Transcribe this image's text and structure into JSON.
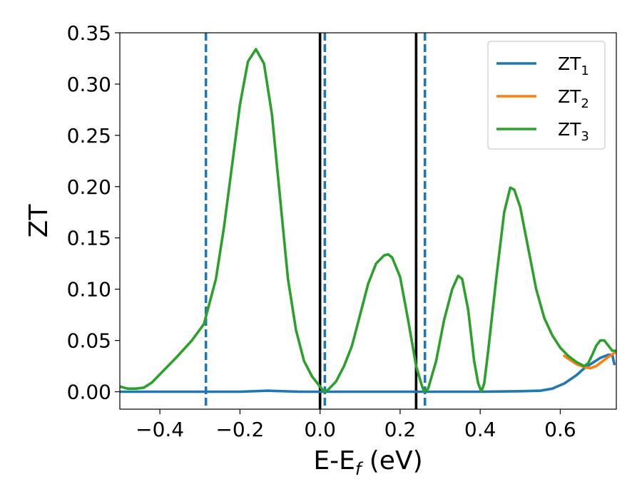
{
  "chart_data": {
    "type": "line",
    "xlabel": {
      "main": "E-E",
      "sub": "f",
      "suffix": " (eV)"
    },
    "ylabel": "ZT",
    "xlim": [
      -0.5,
      0.74
    ],
    "ylim": [
      -0.017,
      0.35
    ],
    "xticks": [
      {
        "value": -0.4,
        "label": "−0.4"
      },
      {
        "value": -0.2,
        "label": "−0.2"
      },
      {
        "value": 0.0,
        "label": "0.0"
      },
      {
        "value": 0.2,
        "label": "0.2"
      },
      {
        "value": 0.4,
        "label": "0.4"
      },
      {
        "value": 0.6,
        "label": "0.6"
      }
    ],
    "yticks": [
      {
        "value": 0.0,
        "label": "0.00"
      },
      {
        "value": 0.05,
        "label": "0.05"
      },
      {
        "value": 0.1,
        "label": "0.10"
      },
      {
        "value": 0.15,
        "label": "0.15"
      },
      {
        "value": 0.2,
        "label": "0.20"
      },
      {
        "value": 0.25,
        "label": "0.25"
      },
      {
        "value": 0.3,
        "label": "0.30"
      },
      {
        "value": 0.35,
        "label": "0.35"
      }
    ],
    "grid": false,
    "legend_position": "top-right",
    "series": [
      {
        "name": "ZT",
        "sub": "1",
        "color": "#1f77b4",
        "points": [
          [
            -0.5,
            0.0
          ],
          [
            -0.4,
            0.0
          ],
          [
            -0.3,
            0.0
          ],
          [
            -0.2,
            0.0
          ],
          [
            -0.13,
            0.001
          ],
          [
            -0.05,
            0.0
          ],
          [
            0.0,
            0.0
          ],
          [
            0.1,
            0.0
          ],
          [
            0.2,
            0.0
          ],
          [
            0.3,
            0.0
          ],
          [
            0.4,
            0.0
          ],
          [
            0.5,
            0.0005
          ],
          [
            0.55,
            0.001
          ],
          [
            0.58,
            0.003
          ],
          [
            0.61,
            0.008
          ],
          [
            0.64,
            0.016
          ],
          [
            0.66,
            0.023
          ],
          [
            0.68,
            0.028
          ],
          [
            0.7,
            0.033
          ],
          [
            0.72,
            0.036
          ],
          [
            0.73,
            0.036
          ],
          [
            0.735,
            0.027
          ]
        ]
      },
      {
        "name": "ZT",
        "sub": "2",
        "color": "#ff7f0e",
        "points": [
          [
            0.61,
            0.035
          ],
          [
            0.64,
            0.027
          ],
          [
            0.66,
            0.024
          ],
          [
            0.675,
            0.023
          ],
          [
            0.69,
            0.025
          ],
          [
            0.7,
            0.028
          ],
          [
            0.72,
            0.034
          ],
          [
            0.74,
            0.039
          ]
        ]
      },
      {
        "name": "ZT",
        "sub": "3",
        "color": "#2ca02c",
        "points": [
          [
            -0.5,
            0.005
          ],
          [
            -0.48,
            0.003
          ],
          [
            -0.46,
            0.003
          ],
          [
            -0.44,
            0.004
          ],
          [
            -0.42,
            0.009
          ],
          [
            -0.4,
            0.017
          ],
          [
            -0.36,
            0.033
          ],
          [
            -0.32,
            0.05
          ],
          [
            -0.29,
            0.066
          ],
          [
            -0.26,
            0.11
          ],
          [
            -0.24,
            0.16
          ],
          [
            -0.22,
            0.22
          ],
          [
            -0.2,
            0.28
          ],
          [
            -0.18,
            0.322
          ],
          [
            -0.16,
            0.334
          ],
          [
            -0.14,
            0.32
          ],
          [
            -0.12,
            0.27
          ],
          [
            -0.1,
            0.19
          ],
          [
            -0.08,
            0.11
          ],
          [
            -0.06,
            0.06
          ],
          [
            -0.04,
            0.03
          ],
          [
            -0.02,
            0.015
          ],
          [
            0.0,
            0.005
          ],
          [
            0.01,
            0.0
          ],
          [
            0.02,
            0.002
          ],
          [
            0.04,
            0.01
          ],
          [
            0.06,
            0.025
          ],
          [
            0.08,
            0.045
          ],
          [
            0.1,
            0.075
          ],
          [
            0.12,
            0.105
          ],
          [
            0.14,
            0.125
          ],
          [
            0.16,
            0.133
          ],
          [
            0.17,
            0.134
          ],
          [
            0.18,
            0.131
          ],
          [
            0.2,
            0.112
          ],
          [
            0.22,
            0.07
          ],
          [
            0.24,
            0.025
          ],
          [
            0.255,
            0.005
          ],
          [
            0.26,
            0.0
          ],
          [
            0.27,
            0.003
          ],
          [
            0.29,
            0.03
          ],
          [
            0.31,
            0.07
          ],
          [
            0.33,
            0.1
          ],
          [
            0.345,
            0.113
          ],
          [
            0.355,
            0.11
          ],
          [
            0.37,
            0.08
          ],
          [
            0.385,
            0.03
          ],
          [
            0.395,
            0.008
          ],
          [
            0.403,
            0.0
          ],
          [
            0.41,
            0.008
          ],
          [
            0.42,
            0.04
          ],
          [
            0.44,
            0.11
          ],
          [
            0.46,
            0.175
          ],
          [
            0.475,
            0.199
          ],
          [
            0.485,
            0.197
          ],
          [
            0.5,
            0.18
          ],
          [
            0.52,
            0.14
          ],
          [
            0.54,
            0.1
          ],
          [
            0.56,
            0.072
          ],
          [
            0.58,
            0.055
          ],
          [
            0.6,
            0.043
          ],
          [
            0.62,
            0.035
          ],
          [
            0.64,
            0.029
          ],
          [
            0.66,
            0.025
          ],
          [
            0.67,
            0.028
          ],
          [
            0.68,
            0.036
          ],
          [
            0.69,
            0.045
          ],
          [
            0.7,
            0.05
          ],
          [
            0.71,
            0.05
          ],
          [
            0.72,
            0.045
          ],
          [
            0.73,
            0.04
          ],
          [
            0.74,
            0.04
          ]
        ]
      }
    ],
    "vlines": [
      {
        "x": -0.285,
        "style": "dashed",
        "color": "#1f77b4"
      },
      {
        "x": 0.012,
        "style": "dashed",
        "color": "#1f77b4"
      },
      {
        "x": 0.262,
        "style": "dashed",
        "color": "#1f77b4"
      },
      {
        "x": 0.0,
        "style": "solid",
        "color": "#000000"
      },
      {
        "x": 0.24,
        "style": "solid",
        "color": "#000000"
      }
    ]
  }
}
